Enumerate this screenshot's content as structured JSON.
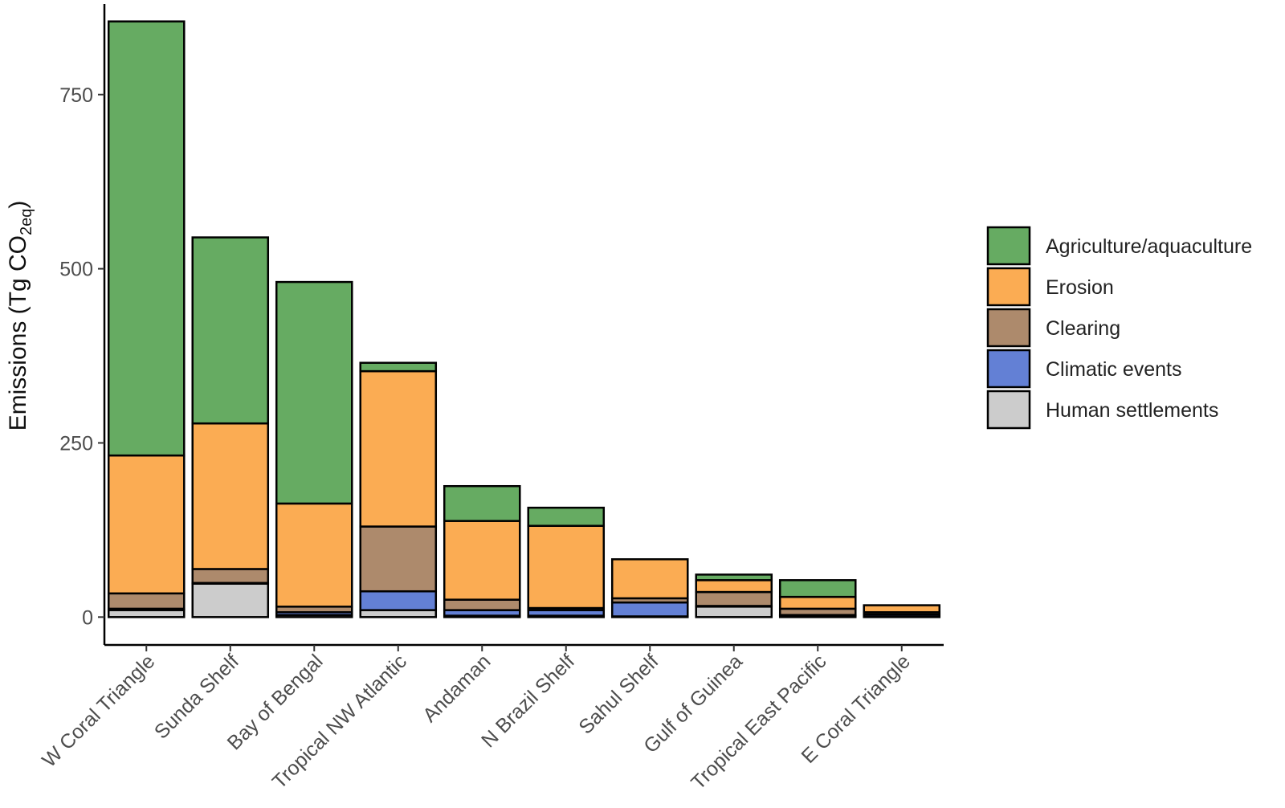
{
  "chart_data": {
    "type": "bar",
    "stacked": true,
    "title": "",
    "xlabel": "",
    "ylabel": "Emissions (Tg CO2eq)",
    "ylabel_parts": {
      "main": "Emissions (Tg CO",
      "sub": "2eq",
      "close": ")"
    },
    "ylim": [
      -40,
      880
    ],
    "yticks": [
      0,
      250,
      500,
      750
    ],
    "grid": false,
    "legend_position": "right",
    "categories": [
      "W Coral Triangle",
      "Sunda Shelf",
      "Bay of Bengal",
      "Tropical NW Atlantic",
      "Andaman",
      "N Brazil Shelf",
      "Sahul Shelf",
      "Gulf of Guinea",
      "Tropical East Pacific",
      "E Coral Triangle"
    ],
    "series": [
      {
        "name": "Human settlements",
        "color": "#cccccc",
        "values": [
          10,
          48,
          3,
          10,
          2,
          2,
          1,
          15,
          2,
          1
        ]
      },
      {
        "name": "Climatic events",
        "color": "#6380d5",
        "values": [
          2,
          1,
          4,
          27,
          8,
          8,
          20,
          1,
          1,
          3
        ]
      },
      {
        "name": "Clearing",
        "color": "#ad8a6c",
        "values": [
          22,
          20,
          8,
          93,
          15,
          3,
          6,
          20,
          9,
          3
        ]
      },
      {
        "name": "Erosion",
        "color": "#fbac53",
        "values": [
          198,
          209,
          148,
          223,
          113,
          118,
          56,
          17,
          17,
          10
        ]
      },
      {
        "name": "Agriculture/aquaculture",
        "color": "#66ab62",
        "values": [
          623,
          267,
          318,
          12,
          50,
          26,
          0,
          8,
          24,
          0
        ]
      }
    ],
    "legend_order": [
      "Agriculture/aquaculture",
      "Erosion",
      "Clearing",
      "Climatic events",
      "Human settlements"
    ]
  }
}
